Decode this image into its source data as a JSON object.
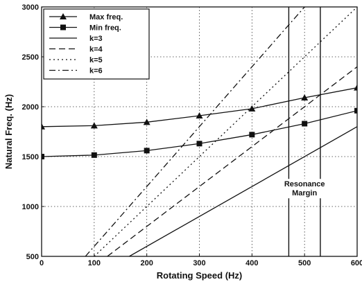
{
  "chart_data": {
    "type": "line",
    "xlabel": "Rotating Speed (Hz)",
    "ylabel": "Natural Freq. (Hz)",
    "xlim": [
      0,
      600
    ],
    "ylim": [
      500,
      3000
    ],
    "xticks": [
      0,
      100,
      200,
      300,
      400,
      500,
      600
    ],
    "yticks": [
      500,
      1000,
      1500,
      2000,
      2500,
      3000
    ],
    "grid": true,
    "legend_position": "top-left",
    "series": [
      {
        "name": "Max freq.",
        "style": "solid",
        "marker": "triangle",
        "x": [
          0,
          100,
          200,
          300,
          400,
          500,
          600
        ],
        "y": [
          1800,
          1810,
          1845,
          1910,
          1980,
          2090,
          2190
        ]
      },
      {
        "name": "Min freq.",
        "style": "solid",
        "marker": "square",
        "x": [
          0,
          100,
          200,
          300,
          400,
          500,
          600
        ],
        "y": [
          1500,
          1515,
          1560,
          1630,
          1720,
          1830,
          1960
        ]
      },
      {
        "name": "k=3",
        "style": "solid",
        "marker": "none",
        "x": [
          166.7,
          600
        ],
        "y": [
          500,
          1800
        ]
      },
      {
        "name": "k=4",
        "style": "dashed",
        "marker": "none",
        "x": [
          125,
          600
        ],
        "y": [
          500,
          2400
        ]
      },
      {
        "name": "k=5",
        "style": "dotted",
        "marker": "none",
        "x": [
          100,
          600
        ],
        "y": [
          500,
          3000
        ]
      },
      {
        "name": "k=6",
        "style": "dashdot",
        "marker": "none",
        "x": [
          83.3,
          500
        ],
        "y": [
          500,
          3000
        ]
      }
    ],
    "vlines": [
      470,
      530
    ],
    "annotation": {
      "lines": [
        "Resonance",
        "Margin"
      ],
      "x": 500,
      "y": 1200
    }
  }
}
